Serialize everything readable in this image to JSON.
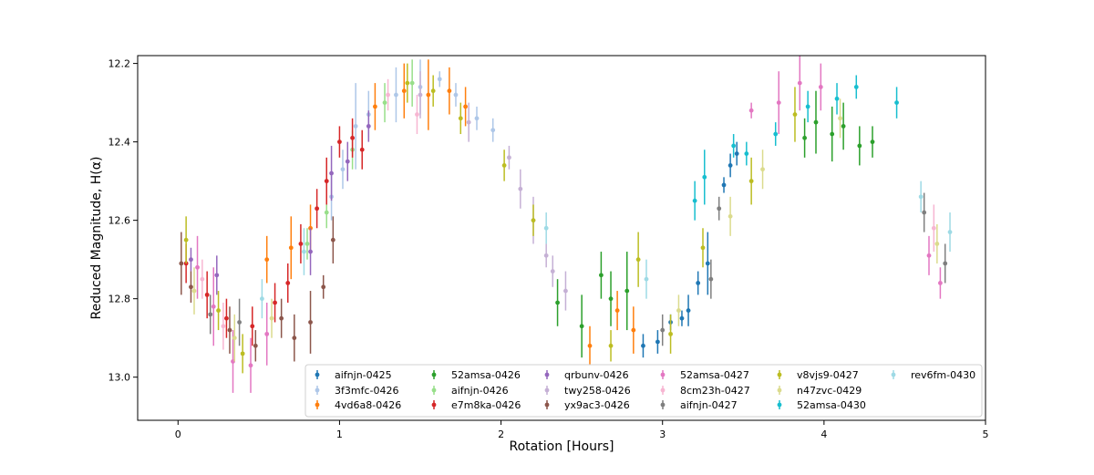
{
  "chart_data": {
    "type": "scatter",
    "title": "",
    "xlabel": "Rotation [Hours]",
    "ylabel": "Reduced Magnitude, H(α)",
    "xlim": [
      -0.25,
      5.0
    ],
    "ylim": [
      13.11,
      12.18
    ],
    "y_inverted": true,
    "x_ticks": [
      0,
      1,
      2,
      3,
      4,
      5
    ],
    "y_ticks": [
      12.2,
      12.4,
      12.6,
      12.8,
      13.0
    ],
    "x_tick_labels": [
      "0",
      "1",
      "2",
      "3",
      "4",
      "5"
    ],
    "y_tick_labels": [
      "12.2",
      "12.4",
      "12.6",
      "12.8",
      "13.0"
    ],
    "grid": false,
    "legend_position": "lower-right",
    "legend_columns": 6,
    "series": [
      {
        "name": "aifnjn-0425",
        "color": "#1f77b4",
        "points": [
          [
            3.12,
            12.85,
            0.02
          ],
          [
            3.16,
            12.83,
            0.04
          ],
          [
            3.22,
            12.76,
            0.03
          ],
          [
            3.28,
            12.71,
            0.08
          ],
          [
            3.38,
            12.51,
            0.02
          ],
          [
            3.42,
            12.46,
            0.03
          ],
          [
            3.46,
            12.43,
            0.03
          ],
          [
            2.97,
            12.91,
            0.03
          ],
          [
            3.05,
            12.86,
            0.02
          ],
          [
            2.88,
            12.92,
            0.03
          ]
        ]
      },
      {
        "name": "3f3mfc-0426",
        "color": "#aec7e8",
        "points": [
          [
            0.95,
            12.54,
            0.06
          ],
          [
            1.02,
            12.47,
            0.05
          ],
          [
            1.1,
            12.36,
            0.11
          ],
          [
            1.18,
            12.33,
            0.06
          ],
          [
            1.35,
            12.28,
            0.07
          ],
          [
            1.5,
            12.26,
            0.07
          ],
          [
            1.62,
            12.24,
            0.02
          ],
          [
            1.72,
            12.28,
            0.03
          ],
          [
            1.85,
            12.34,
            0.03
          ],
          [
            1.95,
            12.37,
            0.03
          ]
        ]
      },
      {
        "name": "4vd6a8-0426",
        "color": "#ff7f0e",
        "points": [
          [
            0.55,
            12.7,
            0.06
          ],
          [
            0.7,
            12.67,
            0.08
          ],
          [
            0.82,
            12.62,
            0.06
          ],
          [
            1.22,
            12.31,
            0.06
          ],
          [
            1.4,
            12.27,
            0.07
          ],
          [
            1.55,
            12.28,
            0.09
          ],
          [
            1.68,
            12.27,
            0.06
          ],
          [
            1.78,
            12.31,
            0.05
          ],
          [
            2.55,
            12.92,
            0.05
          ],
          [
            2.72,
            12.83,
            0.05
          ],
          [
            2.82,
            12.88,
            0.06
          ]
        ]
      },
      {
        "name": "52amsa-0426",
        "color": "#2ca02c",
        "points": [
          [
            2.35,
            12.81,
            0.06
          ],
          [
            2.5,
            12.87,
            0.08
          ],
          [
            2.62,
            12.74,
            0.06
          ],
          [
            2.68,
            12.8,
            0.07
          ],
          [
            2.78,
            12.78,
            0.1
          ],
          [
            3.88,
            12.39,
            0.05
          ],
          [
            3.95,
            12.35,
            0.08
          ],
          [
            4.05,
            12.38,
            0.07
          ],
          [
            4.12,
            12.36,
            0.06
          ],
          [
            4.22,
            12.41,
            0.05
          ],
          [
            4.3,
            12.4,
            0.04
          ]
        ]
      },
      {
        "name": "aifnjn-0426",
        "color": "#98df8a",
        "points": [
          [
            0.8,
            12.66,
            0.04
          ],
          [
            0.92,
            12.58,
            0.04
          ],
          [
            1.08,
            12.42,
            0.05
          ],
          [
            1.28,
            12.3,
            0.05
          ],
          [
            1.45,
            12.25,
            0.06
          ]
        ]
      },
      {
        "name": "e7m8ka-0426",
        "color": "#d62728",
        "points": [
          [
            0.05,
            12.71,
            0.05
          ],
          [
            0.18,
            12.79,
            0.06
          ],
          [
            0.3,
            12.85,
            0.05
          ],
          [
            0.46,
            12.87,
            0.05
          ],
          [
            0.6,
            12.81,
            0.05
          ],
          [
            0.68,
            12.76,
            0.05
          ],
          [
            0.76,
            12.66,
            0.05
          ],
          [
            0.86,
            12.57,
            0.05
          ],
          [
            0.92,
            12.5,
            0.06
          ],
          [
            1.0,
            12.4,
            0.04
          ],
          [
            1.08,
            12.39,
            0.05
          ],
          [
            1.14,
            12.42,
            0.05
          ]
        ]
      },
      {
        "name": "qrbunv-0426",
        "color": "#9467bd",
        "points": [
          [
            0.08,
            12.7,
            0.03
          ],
          [
            0.24,
            12.74,
            0.05
          ],
          [
            0.82,
            12.68,
            0.06
          ],
          [
            0.95,
            12.48,
            0.07
          ],
          [
            1.05,
            12.45,
            0.05
          ],
          [
            1.18,
            12.36,
            0.04
          ]
        ]
      },
      {
        "name": "twy258-0426",
        "color": "#c5b0d5",
        "points": [
          [
            1.5,
            12.28,
            0.06
          ],
          [
            1.8,
            12.35,
            0.05
          ],
          [
            2.05,
            12.44,
            0.03
          ],
          [
            2.12,
            12.52,
            0.05
          ],
          [
            2.2,
            12.6,
            0.06
          ],
          [
            2.28,
            12.69,
            0.03
          ],
          [
            2.32,
            12.73,
            0.04
          ],
          [
            2.4,
            12.78,
            0.05
          ]
        ]
      },
      {
        "name": "yx9ac3-0426",
        "color": "#8c564b",
        "points": [
          [
            0.02,
            12.71,
            0.08
          ],
          [
            0.08,
            12.77,
            0.04
          ],
          [
            0.32,
            12.88,
            0.06
          ],
          [
            0.48,
            12.92,
            0.04
          ],
          [
            0.64,
            12.85,
            0.05
          ],
          [
            0.72,
            12.9,
            0.06
          ],
          [
            0.82,
            12.86,
            0.08
          ],
          [
            0.9,
            12.77,
            0.03
          ],
          [
            0.96,
            12.65,
            0.06
          ]
        ]
      },
      {
        "name": "52amsa-0427",
        "color": "#e377c2",
        "points": [
          [
            0.12,
            12.72,
            0.08
          ],
          [
            0.22,
            12.82,
            0.1
          ],
          [
            0.34,
            12.96,
            0.08
          ],
          [
            0.45,
            12.97,
            0.07
          ],
          [
            0.55,
            12.89,
            0.08
          ],
          [
            3.55,
            12.32,
            0.02
          ],
          [
            3.72,
            12.3,
            0.08
          ],
          [
            3.85,
            12.25,
            0.07
          ],
          [
            3.98,
            12.26,
            0.06
          ],
          [
            4.65,
            12.69,
            0.05
          ],
          [
            4.72,
            12.76,
            0.04
          ]
        ]
      },
      {
        "name": "8cm23h-0427",
        "color": "#f7b6d2",
        "points": [
          [
            0.15,
            12.75,
            0.05
          ],
          [
            0.28,
            12.87,
            0.06
          ],
          [
            1.3,
            12.28,
            0.04
          ],
          [
            1.48,
            12.33,
            0.05
          ],
          [
            4.68,
            12.62,
            0.06
          ]
        ]
      },
      {
        "name": "aifnjn-0427",
        "color": "#7f7f7f",
        "points": [
          [
            0.2,
            12.84,
            0.05
          ],
          [
            0.38,
            12.86,
            0.06
          ],
          [
            3.0,
            12.88,
            0.04
          ],
          [
            3.3,
            12.75,
            0.05
          ],
          [
            3.35,
            12.57,
            0.03
          ],
          [
            4.62,
            12.58,
            0.05
          ],
          [
            4.75,
            12.71,
            0.05
          ]
        ]
      },
      {
        "name": "v8vjs9-0427",
        "color": "#bcbd22",
        "points": [
          [
            0.05,
            12.65,
            0.06
          ],
          [
            0.25,
            12.83,
            0.05
          ],
          [
            0.4,
            12.94,
            0.05
          ],
          [
            1.42,
            12.25,
            0.05
          ],
          [
            1.58,
            12.27,
            0.04
          ],
          [
            1.75,
            12.34,
            0.04
          ],
          [
            2.02,
            12.46,
            0.04
          ],
          [
            2.2,
            12.6,
            0.04
          ],
          [
            2.68,
            12.92,
            0.04
          ],
          [
            2.85,
            12.7,
            0.07
          ],
          [
            3.05,
            12.89,
            0.05
          ],
          [
            3.25,
            12.67,
            0.05
          ],
          [
            3.55,
            12.5,
            0.06
          ],
          [
            3.82,
            12.33,
            0.07
          ]
        ]
      },
      {
        "name": "n47zvc-0429",
        "color": "#dbdb8d",
        "points": [
          [
            0.1,
            12.78,
            0.06
          ],
          [
            0.35,
            12.9,
            0.06
          ],
          [
            0.58,
            12.85,
            0.05
          ],
          [
            3.1,
            12.83,
            0.04
          ],
          [
            3.42,
            12.59,
            0.05
          ],
          [
            3.62,
            12.47,
            0.05
          ],
          [
            4.1,
            12.34,
            0.05
          ],
          [
            4.7,
            12.66,
            0.05
          ]
        ]
      },
      {
        "name": "52amsa-0430",
        "color": "#17becf",
        "points": [
          [
            3.2,
            12.55,
            0.05
          ],
          [
            3.26,
            12.49,
            0.07
          ],
          [
            3.44,
            12.41,
            0.03
          ],
          [
            3.52,
            12.43,
            0.03
          ],
          [
            3.7,
            12.38,
            0.03
          ],
          [
            3.9,
            12.31,
            0.04
          ],
          [
            4.08,
            12.29,
            0.04
          ],
          [
            4.2,
            12.26,
            0.03
          ],
          [
            4.45,
            12.3,
            0.04
          ]
        ]
      },
      {
        "name": "rev6fm-0430",
        "color": "#9edae5",
        "points": [
          [
            0.52,
            12.8,
            0.05
          ],
          [
            0.78,
            12.68,
            0.06
          ],
          [
            2.28,
            12.62,
            0.04
          ],
          [
            2.9,
            12.75,
            0.05
          ],
          [
            4.6,
            12.54,
            0.04
          ],
          [
            4.78,
            12.63,
            0.05
          ]
        ]
      }
    ]
  }
}
